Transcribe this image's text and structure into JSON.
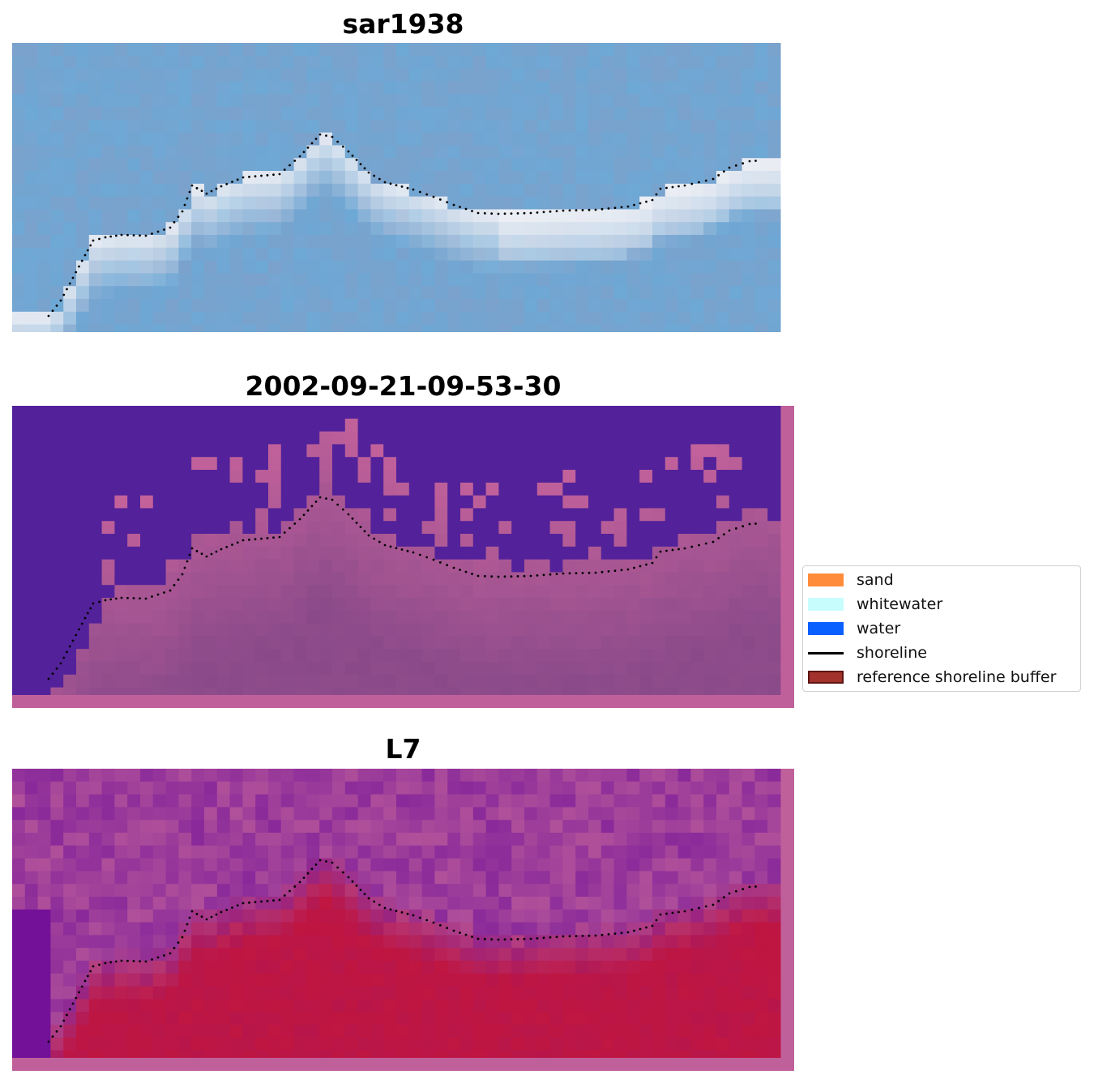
{
  "panels": [
    {
      "title": "sar1938",
      "style": "sar"
    },
    {
      "title": "2002-09-21-09-53-30",
      "style": "classes"
    },
    {
      "title": "L7",
      "style": "index"
    }
  ],
  "legend": {
    "items": [
      {
        "label": "sand",
        "type": "patch",
        "color": "#ff8c3a",
        "edge": "#ff8c3a"
      },
      {
        "label": "whitewater",
        "type": "patch",
        "color": "#c8fdfd",
        "edge": "#c8fdfd"
      },
      {
        "label": "water",
        "type": "patch",
        "color": "#0a5fff",
        "edge": "#0a5fff"
      },
      {
        "label": "shoreline",
        "type": "line",
        "color": "#000000"
      },
      {
        "label": "reference shoreline buffer",
        "type": "patch",
        "color": "#a3322d",
        "edge": "#5e1512"
      }
    ]
  },
  "colors": {
    "sar_base": "#7aa2cc",
    "sar_white": "#f2f2f6",
    "class_water": "#53229a",
    "class_land": "#8a4a8a",
    "buffer_pink": "#c0609a",
    "index_red": "#c0123c",
    "index_purple": "#8a2a9a"
  }
}
